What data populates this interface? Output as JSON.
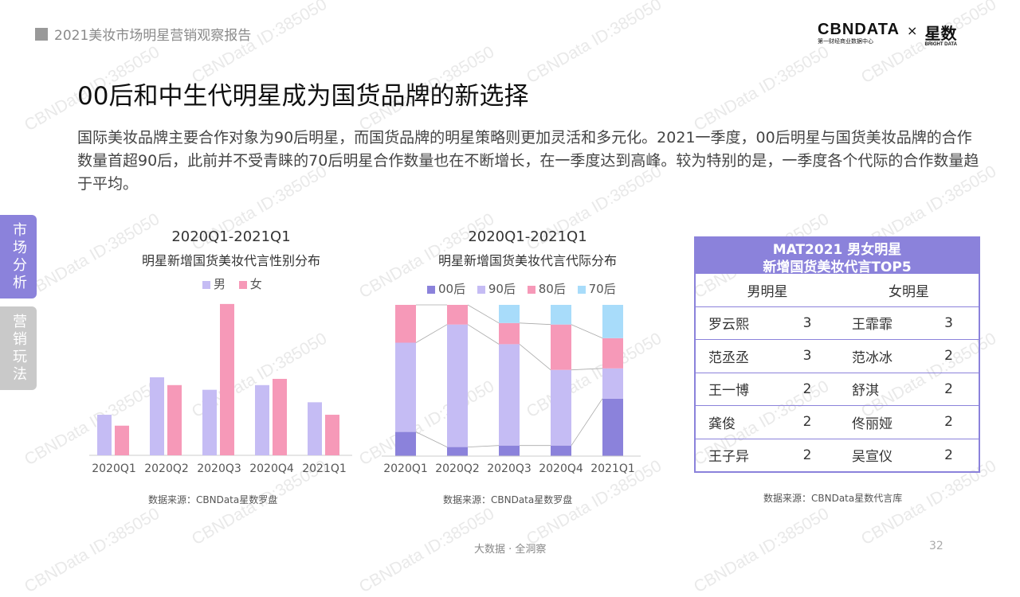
{
  "header": {
    "title": "2021美妆市场明星营销观察报告"
  },
  "logo": {
    "cbn": "CBNDATA",
    "cbn_sub": "第一财经商业数据中心",
    "x": "×",
    "xingshu": "星数",
    "xingshu_sub": "BRIGHT DATA"
  },
  "page_title": "00后和中生代明星成为国货品牌的新选择",
  "description": "国际美妆品牌主要合作对象为90后明星，而国货品牌的明星策略则更加灵活和多元化。2021一季度，00后明星与国货美妆品牌的合作数量首超90后，此前并不受青睐的70后明星合作数量也在不断增长，在一季度达到高峰。较为特别的是，一季度各个代际的合作数量趋于平均。",
  "side_tabs": [
    {
      "label": "市场分析"
    },
    {
      "label": "营销玩法"
    }
  ],
  "colors": {
    "purple": "#8b82db",
    "light_purple": "#c5bcf4",
    "pink": "#f699b8",
    "light_blue": "#a8dcfa",
    "dark_purple": "#8b82db"
  },
  "chart_data": [
    {
      "type": "bar",
      "title": "2020Q1-2021Q1",
      "subtitle": "明星新增国货美妆代言性别分布",
      "categories": [
        "2020Q1",
        "2020Q2",
        "2020Q3",
        "2020Q4",
        "2021Q1"
      ],
      "series": [
        {
          "name": "男",
          "color": "#c5bcf4",
          "values": [
            26,
            50,
            42,
            45,
            34
          ]
        },
        {
          "name": "女",
          "color": "#f699b8",
          "values": [
            19,
            45,
            97,
            49,
            26
          ]
        }
      ],
      "ylim": [
        0,
        100
      ],
      "grid": false,
      "legend": "top-center",
      "source": "数据来源：CBNData星数罗盘"
    },
    {
      "type": "bar",
      "stacked": "percent",
      "title": "2020Q1-2021Q1",
      "subtitle": "明星新增国货美妆代言代际分布",
      "categories": [
        "2020Q1",
        "2020Q2",
        "2020Q3",
        "2020Q4",
        "2021Q1"
      ],
      "series": [
        {
          "name": "00后",
          "color": "#8b82db",
          "values": [
            16,
            6,
            7,
            7,
            38
          ]
        },
        {
          "name": "90后",
          "color": "#c5bcf4",
          "values": [
            59,
            81,
            67,
            50,
            20
          ]
        },
        {
          "name": "80后",
          "color": "#f699b8",
          "values": [
            25,
            13,
            14,
            30,
            20
          ]
        },
        {
          "name": "70后",
          "color": "#a8dcfa",
          "values": [
            0,
            0,
            12,
            13,
            22
          ]
        }
      ],
      "ylim": [
        0,
        100
      ],
      "grid": false,
      "legend": "top-center",
      "source": "数据来源：CBNData星数罗盘"
    },
    {
      "type": "table",
      "title_line1": "MAT2021 男女明星",
      "title_line2": "新增国货美妆代言TOP5",
      "headers": [
        "男明星",
        "女明星"
      ],
      "rows": [
        {
          "male": "罗云熙",
          "male_count": "3",
          "female": "王霏霏",
          "female_count": "3"
        },
        {
          "male": "范丞丞",
          "male_count": "3",
          "female": "范冰冰",
          "female_count": "2"
        },
        {
          "male": "王一博",
          "male_count": "2",
          "female": "舒淇",
          "female_count": "2"
        },
        {
          "male": "龚俊",
          "male_count": "2",
          "female": "佟丽娅",
          "female_count": "2"
        },
        {
          "male": "王子异",
          "male_count": "2",
          "female": "吴宣仪",
          "female_count": "2"
        }
      ],
      "source": "数据来源：CBNData星数代言库"
    }
  ],
  "footer": {
    "text": "大数据 · 全洞察",
    "page": "32"
  },
  "watermark": "CBNData ID:385050"
}
